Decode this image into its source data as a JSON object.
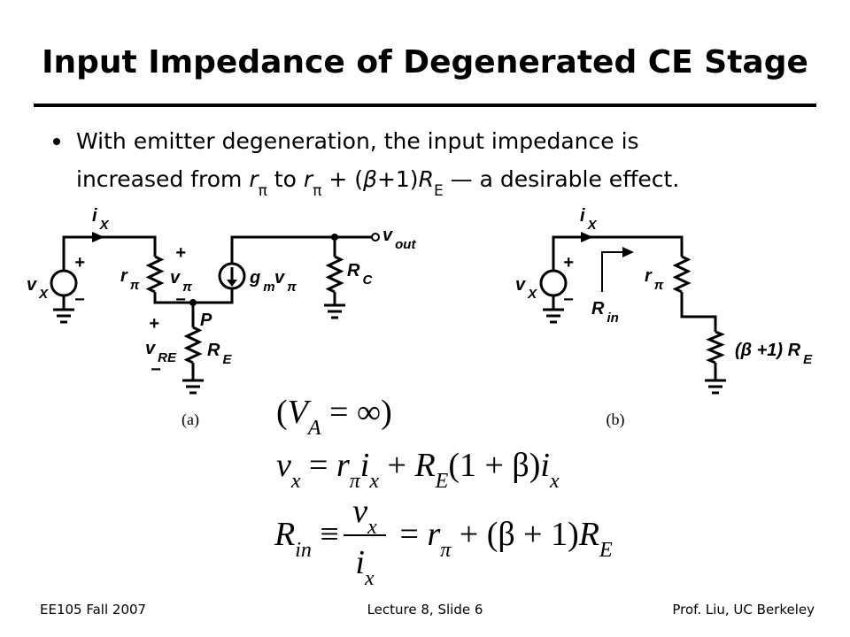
{
  "title": "Input Impedance of Degenerated CE Stage",
  "bullet": {
    "line1": "With emitter degeneration, the input impedance is",
    "line2": [
      "increased from ",
      "r",
      "π",
      " to ",
      "r",
      "π",
      " + (",
      "β",
      "+1)",
      "R",
      "E",
      " — a desirable effect."
    ]
  },
  "figure_a": {
    "labels": [
      {
        "main": "i",
        "sub": "X"
      },
      {
        "main": "v",
        "sub": "X"
      },
      {
        "main": "+"
      },
      {
        "main": "−"
      },
      {
        "main": "r",
        "sub": "π"
      },
      {
        "main": "+"
      },
      {
        "main": "v",
        "sub": "π"
      },
      {
        "main": "−"
      },
      {
        "main": "g",
        "sub": "m"
      },
      {
        "main": "v",
        "sub": "π"
      },
      {
        "main": "R",
        "sub": "C"
      },
      {
        "main": "v",
        "sub": "out"
      },
      {
        "main": "P"
      },
      {
        "main": "+"
      },
      {
        "main": "v",
        "sub": "RE"
      },
      {
        "main": "−"
      },
      {
        "main": "R",
        "sub": "E"
      }
    ],
    "caption": "(a)"
  },
  "figure_b": {
    "labels": [
      {
        "main": "i",
        "sub": "X"
      },
      {
        "main": "v",
        "sub": "X"
      },
      {
        "main": "+"
      },
      {
        "main": "−"
      },
      {
        "main": "r",
        "sub": "π"
      },
      {
        "main": "R",
        "sub": "in"
      },
      {
        "main": "(β +1) R",
        "sub": "E"
      }
    ],
    "caption": "(b)"
  },
  "equations": [
    [
      "(",
      "V",
      "A",
      " = ∞)"
    ],
    [
      "v",
      "x",
      " = ",
      "r",
      "π",
      "i",
      "x",
      " + ",
      "R",
      "E",
      "(1 + β)",
      "i",
      "x"
    ],
    [
      "R",
      "in",
      " ≡ ",
      "v",
      "x",
      "i",
      "x",
      " = ",
      "r",
      "π",
      " + (β + 1)",
      "R",
      "E"
    ]
  ],
  "footer": {
    "left": "EE105 Fall 2007",
    "center": "Lecture 8, Slide 6",
    "right": "Prof. Liu, UC Berkeley"
  }
}
